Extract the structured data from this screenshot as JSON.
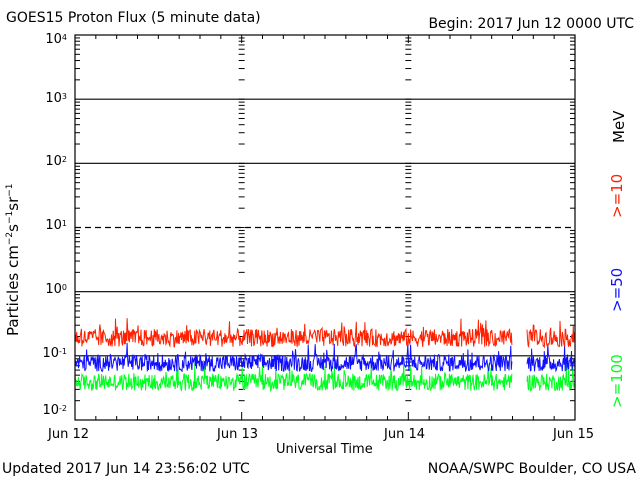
{
  "header": {
    "title": "GOES15 Proton Flux (5 minute data)",
    "begin": "Begin: 2017 Jun 12 0000 UTC"
  },
  "footer": {
    "updated": "Updated 2017 Jun 14 23:56:02 UTC",
    "credit": "NOAA/SWPC Boulder, CO USA"
  },
  "chart_data": {
    "type": "line",
    "title": "GOES15 Proton Flux (5 minute data)",
    "xlabel": "Universal Time",
    "ylabel": "Particles cm-2s-1sr-1",
    "yscale": "log",
    "ylim": [
      0.01,
      10000
    ],
    "xlim": [
      "2017-06-12 00:00",
      "2017-06-15 00:00"
    ],
    "x_ticks": [
      "Jun 12",
      "Jun 13",
      "Jun 14",
      "Jun 15"
    ],
    "y_ticks": [
      {
        "base": "10",
        "exp": "-2"
      },
      {
        "base": "10",
        "exp": "-1"
      },
      {
        "base": "10",
        "exp": "0"
      },
      {
        "base": "10",
        "exp": "1"
      },
      {
        "base": "10",
        "exp": "2"
      },
      {
        "base": "10",
        "exp": "3"
      },
      {
        "base": "10",
        "exp": "4"
      }
    ],
    "reference_lines": [
      {
        "value": 10,
        "style": "dashed"
      }
    ],
    "grid": true,
    "unit_label": "MeV",
    "series": [
      {
        "name": ">=10",
        "color": "#ff2000",
        "typical_range": [
          0.12,
          0.3
        ]
      },
      {
        "name": ">=50",
        "color": "#1010ff",
        "typical_range": [
          0.05,
          0.12
        ]
      },
      {
        "name": ">=100",
        "color": "#00ff20",
        "typical_range": [
          0.025,
          0.06
        ]
      }
    ],
    "data_gaps": [
      [
        "2017-06-14 15:00",
        "2017-06-14 17:00"
      ]
    ]
  }
}
